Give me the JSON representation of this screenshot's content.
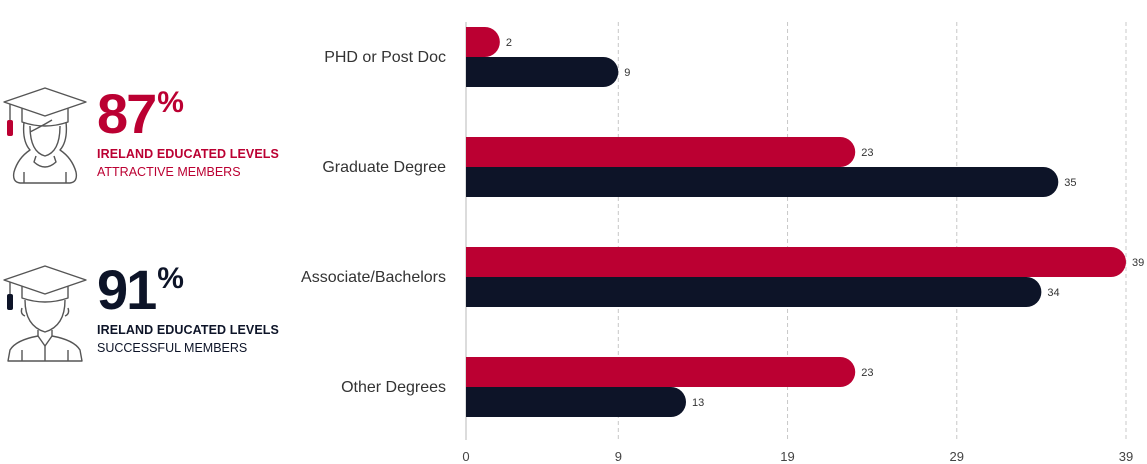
{
  "stats": [
    {
      "value": "87",
      "suffix": "%",
      "line1": "IRELAND EDUCATED LEVELS",
      "line2": "ATTRACTIVE MEMBERS",
      "icon": "female-graduate-icon",
      "color": "#bb0032"
    },
    {
      "value": "91",
      "suffix": "%",
      "line1": "IRELAND EDUCATED LEVELS",
      "line2": "SUCCESSFUL MEMBERS",
      "icon": "male-graduate-icon",
      "color": "#0d1428"
    }
  ],
  "chart_data": {
    "type": "bar",
    "orientation": "horizontal",
    "categories": [
      "PHD or Post Doc",
      "Graduate Degree",
      "Associate/Bachelors",
      "Other Degrees"
    ],
    "series": [
      {
        "values": [
          2,
          23,
          39,
          23
        ],
        "color": "#bb0032"
      },
      {
        "values": [
          9,
          35,
          34,
          13
        ],
        "color": "#0d1428"
      }
    ],
    "xlim": [
      0,
      39
    ],
    "xticks": [
      0,
      9,
      19,
      29,
      39
    ],
    "grid": "vertical dashed",
    "data_labels": true
  }
}
